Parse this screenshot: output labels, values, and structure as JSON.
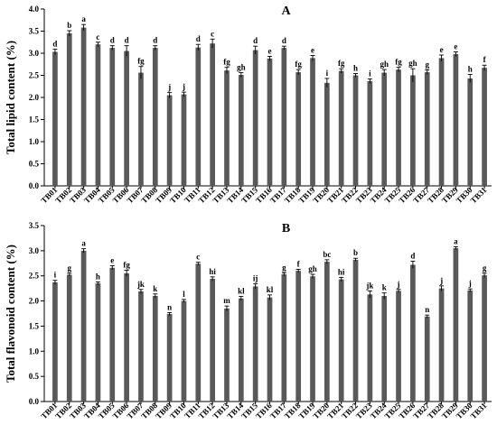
{
  "chart_data": [
    {
      "type": "bar",
      "title": "A",
      "ylabel": "Total lipid content (%)",
      "ylim": [
        0,
        4.0
      ],
      "yticks": [
        "0.0",
        "0.5",
        "1.0",
        "1.5",
        "2.0",
        "2.5",
        "3.0",
        "3.5",
        "4.0"
      ],
      "categories": [
        "TB01",
        "TB02",
        "TB03",
        "TB04",
        "TB05",
        "TB06",
        "TB07",
        "TB08",
        "TB09",
        "TB10",
        "TB11",
        "TB12",
        "TB13",
        "TB14",
        "TB15",
        "TB16",
        "TB17",
        "TB18",
        "TB19",
        "TB20",
        "TB21",
        "TB22",
        "TB23",
        "TB24",
        "TB25",
        "TB26",
        "TB27",
        "TB28",
        "TB29",
        "TB30",
        "TB31"
      ],
      "values": [
        3.03,
        3.45,
        3.58,
        3.2,
        3.12,
        3.05,
        2.56,
        3.12,
        2.05,
        2.07,
        3.13,
        3.22,
        2.61,
        2.51,
        3.07,
        2.88,
        3.12,
        2.57,
        2.89,
        2.33,
        2.6,
        2.5,
        2.37,
        2.56,
        2.63,
        2.5,
        2.57,
        2.89,
        2.98,
        2.43,
        2.67
      ],
      "errors": [
        0.06,
        0.06,
        0.07,
        0.05,
        0.05,
        0.12,
        0.14,
        0.05,
        0.06,
        0.05,
        0.07,
        0.1,
        0.07,
        0.05,
        0.09,
        0.05,
        0.04,
        0.06,
        0.06,
        0.1,
        0.05,
        0.04,
        0.05,
        0.07,
        0.05,
        0.15,
        0.05,
        0.07,
        0.05,
        0.09,
        0.06
      ],
      "letters": [
        "d",
        "b",
        "a",
        "c",
        "d",
        "d",
        "fg",
        "d",
        "j",
        "j",
        "d",
        "c",
        "fg",
        "gh",
        "d",
        "e",
        "d",
        "fg",
        "e",
        "i",
        "fg",
        "h",
        "i",
        "gh",
        "fg",
        "gh",
        "g",
        "e",
        "e",
        "h",
        "f"
      ]
    },
    {
      "type": "bar",
      "title": "B",
      "ylabel": "Total flavonoid content (%)",
      "ylim": [
        0,
        3.5
      ],
      "yticks": [
        "0.0",
        "0.5",
        "1.0",
        "1.5",
        "2.0",
        "2.5",
        "3.0",
        "3.5"
      ],
      "categories": [
        "TB01",
        "TB02",
        "TB03",
        "TB04",
        "TB05",
        "TB06",
        "TB07",
        "TB08",
        "TB09",
        "TB10",
        "TB11",
        "TB12",
        "TB13",
        "TB14",
        "TB15",
        "TB16",
        "TB17",
        "TB18",
        "TB19",
        "TB20",
        "TB21",
        "TB22",
        "TB23",
        "TB24",
        "TB25",
        "TB26",
        "TB27",
        "TB28",
        "TB29",
        "TB30",
        "TB31"
      ],
      "values": [
        2.37,
        2.52,
        3.0,
        2.35,
        2.66,
        2.55,
        2.19,
        2.1,
        1.74,
        2.0,
        2.74,
        2.44,
        1.85,
        2.05,
        2.29,
        2.07,
        2.53,
        2.6,
        2.49,
        2.78,
        2.43,
        2.82,
        2.13,
        2.1,
        2.2,
        2.72,
        1.69,
        2.25,
        3.05,
        2.21,
        2.51
      ],
      "errors": [
        0.04,
        0.03,
        0.04,
        0.03,
        0.04,
        0.06,
        0.04,
        0.04,
        0.03,
        0.03,
        0.03,
        0.04,
        0.05,
        0.04,
        0.05,
        0.05,
        0.03,
        0.03,
        0.04,
        0.04,
        0.04,
        0.03,
        0.07,
        0.06,
        0.03,
        0.07,
        0.03,
        0.05,
        0.03,
        0.03,
        0.04
      ],
      "letters": [
        "i",
        "g",
        "a",
        "h",
        "e",
        "fg",
        "jk",
        "k",
        "n",
        "l",
        "c",
        "hi",
        "m",
        "kl",
        "ij",
        "kl",
        "g",
        "f",
        "gh",
        "bc",
        "hi",
        "b",
        "jk",
        "k",
        "j",
        "d",
        "n",
        "j",
        "a",
        "j",
        "g"
      ]
    }
  ]
}
